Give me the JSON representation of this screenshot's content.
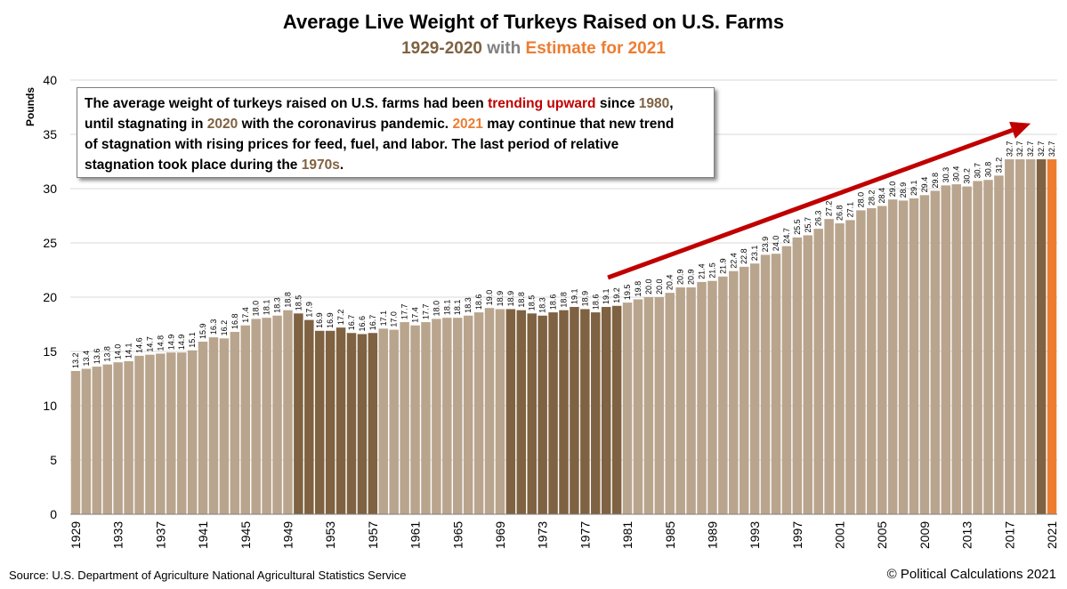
{
  "title": "Average Live Weight of Turkeys Raised on U.S. Farms",
  "subtitle": {
    "years": "1929-2020",
    "with": "with",
    "estimate": "Estimate for 2021"
  },
  "callout": {
    "t1": "The average weight of turkeys raised on U.S. farms had been ",
    "h1": "trending upward",
    "t2": " since ",
    "h2": "1980",
    "t3": ",",
    "t4": "until stagnating in ",
    "h3": "2020",
    "t5": " with the coronavirus pandemic.  ",
    "h4": "2021",
    "t6": " may continue that new trend",
    "t7": "of stagnation with rising prices for feed, fuel, and labor.  The last period of relative",
    "t8": "stagnation took place during the ",
    "h5": "1970s",
    "t9": "."
  },
  "source": "Source: U.S. Department of Agriculture National Agricultural Statistics Service",
  "credit": "© Political Calculations 2021",
  "colors": {
    "normal": "#b9a58d",
    "stagnation": "#7f6241",
    "estimate": "#ed7d31",
    "arrow": "#c00000",
    "grid": "#d9d9d9"
  },
  "chart_data": {
    "type": "bar",
    "title": "Average Live Weight of Turkeys Raised on U.S. Farms",
    "subtitle": "1929-2020 with Estimate for 2021",
    "ylabel": "Pounds",
    "xlabel": "",
    "ylim": [
      0,
      40
    ],
    "yticks": [
      0,
      5,
      10,
      15,
      20,
      25,
      30,
      35,
      40
    ],
    "grid": true,
    "legend": "none",
    "start_year": 1929,
    "categories": [
      "1929",
      "1930",
      "1931",
      "1932",
      "1933",
      "1934",
      "1935",
      "1936",
      "1937",
      "1938",
      "1939",
      "1940",
      "1941",
      "1942",
      "1943",
      "1944",
      "1945",
      "1946",
      "1947",
      "1948",
      "1949",
      "1950",
      "1951",
      "1952",
      "1953",
      "1954",
      "1955",
      "1956",
      "1957",
      "1958",
      "1959",
      "1960",
      "1961",
      "1962",
      "1963",
      "1964",
      "1965",
      "1966",
      "1967",
      "1968",
      "1969",
      "1970",
      "1971",
      "1972",
      "1973",
      "1974",
      "1975",
      "1976",
      "1977",
      "1978",
      "1979",
      "1980",
      "1981",
      "1982",
      "1983",
      "1984",
      "1985",
      "1986",
      "1987",
      "1988",
      "1989",
      "1990",
      "1991",
      "1992",
      "1993",
      "1994",
      "1995",
      "1996",
      "1997",
      "1998",
      "1999",
      "2000",
      "2001",
      "2002",
      "2003",
      "2004",
      "2005",
      "2006",
      "2007",
      "2008",
      "2009",
      "2010",
      "2011",
      "2012",
      "2013",
      "2014",
      "2015",
      "2016",
      "2017",
      "2018",
      "2019",
      "2020",
      "2021"
    ],
    "x_tick_labels": [
      "1929",
      "1933",
      "1937",
      "1941",
      "1945",
      "1949",
      "1953",
      "1957",
      "1961",
      "1965",
      "1969",
      "1973",
      "1977",
      "1981",
      "1985",
      "1989",
      "1993",
      "1997",
      "2001",
      "2005",
      "2009",
      "2013",
      "2017",
      "2021"
    ],
    "values": [
      13.2,
      13.4,
      13.6,
      13.8,
      14.0,
      14.1,
      14.6,
      14.7,
      14.8,
      14.9,
      14.9,
      15.1,
      15.9,
      16.3,
      16.2,
      16.8,
      17.4,
      18.0,
      18.1,
      18.3,
      18.8,
      18.5,
      17.9,
      16.9,
      16.9,
      17.2,
      16.7,
      16.6,
      16.7,
      17.1,
      17.0,
      17.7,
      17.4,
      17.7,
      18.0,
      18.1,
      18.1,
      18.3,
      18.6,
      19.0,
      18.9,
      18.9,
      18.8,
      18.5,
      18.3,
      18.6,
      18.8,
      19.1,
      18.9,
      18.6,
      19.1,
      19.2,
      19.5,
      19.8,
      20.0,
      20.0,
      20.4,
      20.9,
      20.9,
      21.4,
      21.5,
      21.9,
      22.4,
      22.8,
      23.1,
      23.9,
      24.0,
      24.7,
      25.5,
      25.7,
      26.3,
      27.2,
      26.8,
      27.1,
      28.0,
      28.2,
      28.4,
      29.0,
      28.9,
      29.1,
      29.4,
      29.8,
      30.3,
      30.4,
      30.2,
      30.7,
      30.8,
      31.2,
      32.7,
      32.7,
      32.7,
      32.7,
      32.7
    ],
    "highlight": {
      "stagnation_years": [
        "1950",
        "1951",
        "1952",
        "1953",
        "1954",
        "1955",
        "1956",
        "1957",
        "1970",
        "1971",
        "1972",
        "1973",
        "1974",
        "1975",
        "1976",
        "1977",
        "1978",
        "1979",
        "1980",
        "2020"
      ],
      "estimate_years": [
        "2021"
      ]
    },
    "annotation": {
      "type": "trend-arrow",
      "from_year": 1980,
      "from_value": 21.8,
      "to_year": 2019,
      "to_value": 36.0
    }
  }
}
